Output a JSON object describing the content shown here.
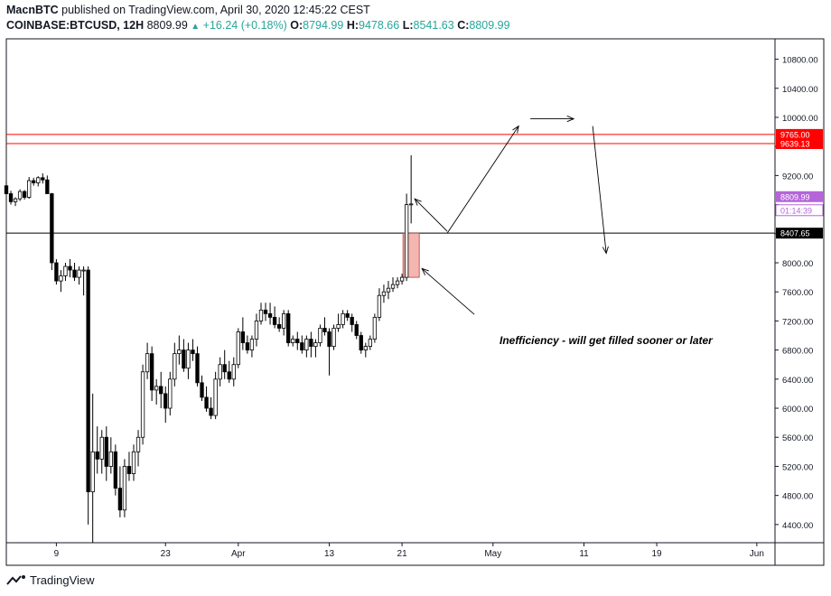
{
  "header": {
    "author": "MacnBTC",
    "published": "published on TradingView.com, April 30, 2020 12:45:22 CEST",
    "symbol": "COINBASE:BTCUSD, 12H",
    "last": "8809.99",
    "change": "+16.24 (+0.18%)",
    "o_label": "O:",
    "o_value": "8794.99",
    "h_label": "H:",
    "h_value": "9478.66",
    "l_label": "L:",
    "l_value": "8541.63",
    "c_label": "C:",
    "c_value": "8809.99"
  },
  "footer": {
    "brand": "TradingView",
    "logo_icon": "tradingview-logo-icon"
  },
  "colors": {
    "candle_up": "#ffffff",
    "candle_down": "#000000",
    "resistance": "#ff0000",
    "price_tag": "#b565d9",
    "support": "#000000",
    "highlight": "#f4b6b0"
  },
  "chart_data": {
    "type": "candlestick",
    "y_axis_ticks": [
      4400,
      4800,
      5200,
      5600,
      6000,
      6400,
      6800,
      7200,
      7600,
      8000,
      8400,
      8800,
      9200,
      9600,
      10000,
      10400,
      10800
    ],
    "y_axis_tick_labels": [
      "4400.00",
      "4800.00",
      "5200.00",
      "5600.00",
      "6000.00",
      "6400.00",
      "6800.00",
      "7200.00",
      "7600.00",
      "8000.00",
      "",
      "",
      "9200.00",
      "",
      "10000.00",
      "10400.00",
      "10800.00"
    ],
    "ylim": [
      4150,
      11080
    ],
    "x_axis_ticks": [
      "9",
      "23",
      "Apr",
      "13",
      "21",
      "May",
      "11",
      "19",
      "Jun"
    ],
    "bar_index_range": [
      0,
      169
    ],
    "x_tick_bar_index": [
      11,
      35,
      51,
      71,
      87,
      107,
      127,
      143,
      165
    ],
    "horizontal_levels": [
      {
        "value": 9765.0,
        "label": "9765.00",
        "style": "resistance"
      },
      {
        "value": 9639.13,
        "label": "9639.13",
        "style": "resistance"
      },
      {
        "value": 8407.65,
        "label": "8407.65",
        "style": "support"
      }
    ],
    "last_price_label": "8809.99",
    "countdown_label": "01:14:39",
    "annotation": "Inefficiency - will get filled sooner or later",
    "candles": [
      [
        9059,
        9120,
        8985,
        8950
      ],
      [
        8950,
        8990,
        8800,
        8840
      ],
      [
        8840,
        8900,
        8780,
        8880
      ],
      [
        8880,
        9010,
        8850,
        8980
      ],
      [
        8980,
        9000,
        8870,
        8900
      ],
      [
        8900,
        9180,
        8880,
        9130
      ],
      [
        9130,
        9170,
        9060,
        9100
      ],
      [
        9100,
        9190,
        9050,
        9170
      ],
      [
        9170,
        9230,
        9090,
        9140
      ],
      [
        9140,
        9200,
        8950,
        8950
      ],
      [
        8950,
        8960,
        7900,
        8000
      ],
      [
        8000,
        8050,
        7700,
        7750
      ],
      [
        7750,
        7900,
        7600,
        7820
      ],
      [
        7820,
        8000,
        7750,
        7950
      ],
      [
        7950,
        8050,
        7800,
        7900
      ],
      [
        7900,
        8000,
        7750,
        7800
      ],
      [
        7800,
        7950,
        7700,
        7900
      ],
      [
        7900,
        7950,
        7550,
        7900
      ],
      [
        7900,
        7950,
        4400,
        4850
      ],
      [
        4850,
        6200,
        4150,
        5400
      ],
      [
        5400,
        5750,
        5100,
        5300
      ],
      [
        5300,
        5700,
        5100,
        5600
      ],
      [
        5600,
        5750,
        5000,
        5200
      ],
      [
        5200,
        5600,
        5100,
        5400
      ],
      [
        5400,
        5500,
        4800,
        4900
      ],
      [
        4900,
        5200,
        4500,
        4600
      ],
      [
        4600,
        5300,
        4500,
        5200
      ],
      [
        5200,
        5400,
        5000,
        5100
      ],
      [
        5100,
        5500,
        5000,
        5400
      ],
      [
        5400,
        5700,
        5200,
        5600
      ],
      [
        5600,
        6600,
        5500,
        6500
      ],
      [
        6500,
        6900,
        6400,
        6750
      ],
      [
        6750,
        6850,
        6100,
        6250
      ],
      [
        6250,
        6400,
        6050,
        6300
      ],
      [
        6300,
        6500,
        6000,
        6200
      ],
      [
        6200,
        6300,
        5800,
        6000
      ],
      [
        6000,
        6500,
        5900,
        6400
      ],
      [
        6400,
        6900,
        6300,
        6750
      ],
      [
        6750,
        7000,
        6600,
        6800
      ],
      [
        6800,
        6950,
        6500,
        6550
      ],
      [
        6550,
        6900,
        6400,
        6800
      ],
      [
        6800,
        6950,
        6650,
        6750
      ],
      [
        6750,
        6850,
        6300,
        6350
      ],
      [
        6350,
        6450,
        6100,
        6150
      ],
      [
        6150,
        6300,
        5950,
        6000
      ],
      [
        6000,
        6150,
        5850,
        5900
      ],
      [
        5900,
        6500,
        5850,
        6400
      ],
      [
        6400,
        6700,
        6300,
        6600
      ],
      [
        6600,
        6800,
        6400,
        6500
      ],
      [
        6500,
        6650,
        6350,
        6400
      ],
      [
        6400,
        6700,
        6300,
        6600
      ],
      [
        6600,
        7100,
        6550,
        7050
      ],
      [
        7050,
        7250,
        6800,
        6900
      ],
      [
        6900,
        7000,
        6750,
        6800
      ],
      [
        6800,
        7000,
        6700,
        6950
      ],
      [
        6950,
        7300,
        6850,
        7200
      ],
      [
        7200,
        7450,
        7150,
        7350
      ],
      [
        7350,
        7450,
        7200,
        7300
      ],
      [
        7300,
        7450,
        7150,
        7250
      ],
      [
        7250,
        7400,
        7100,
        7150
      ],
      [
        7150,
        7250,
        7050,
        7100
      ],
      [
        7100,
        7350,
        7000,
        7300
      ],
      [
        7300,
        7350,
        6850,
        6900
      ],
      [
        6900,
        7000,
        6850,
        6950
      ],
      [
        6950,
        7050,
        6800,
        6900
      ],
      [
        6900,
        7000,
        6750,
        6800
      ],
      [
        6800,
        7000,
        6700,
        6950
      ],
      [
        6950,
        7050,
        6700,
        6850
      ],
      [
        6850,
        6950,
        6700,
        6900
      ],
      [
        6900,
        7150,
        6850,
        7100
      ],
      [
        7100,
        7250,
        7000,
        7050
      ],
      [
        7050,
        7100,
        6450,
        6850
      ],
      [
        6850,
        7150,
        6800,
        7100
      ],
      [
        7100,
        7300,
        7050,
        7150
      ],
      [
        7150,
        7350,
        7100,
        7300
      ],
      [
        7300,
        7350,
        7200,
        7250
      ],
      [
        7250,
        7300,
        7050,
        7150
      ],
      [
        7150,
        7200,
        6950,
        7000
      ],
      [
        7000,
        7050,
        6750,
        6800
      ],
      [
        6800,
        6900,
        6700,
        6850
      ],
      [
        6850,
        7000,
        6800,
        6950
      ],
      [
        6950,
        7300,
        6900,
        7250
      ],
      [
        7250,
        7650,
        7200,
        7550
      ],
      [
        7550,
        7700,
        7450,
        7600
      ],
      [
        7600,
        7750,
        7500,
        7650
      ],
      [
        7650,
        7800,
        7600,
        7700
      ],
      [
        7700,
        7800,
        7650,
        7750
      ],
      [
        7750,
        7850,
        7700,
        7800
      ],
      [
        7800,
        8950,
        7750,
        8800
      ],
      [
        8800,
        9478,
        8541,
        8809
      ]
    ]
  }
}
